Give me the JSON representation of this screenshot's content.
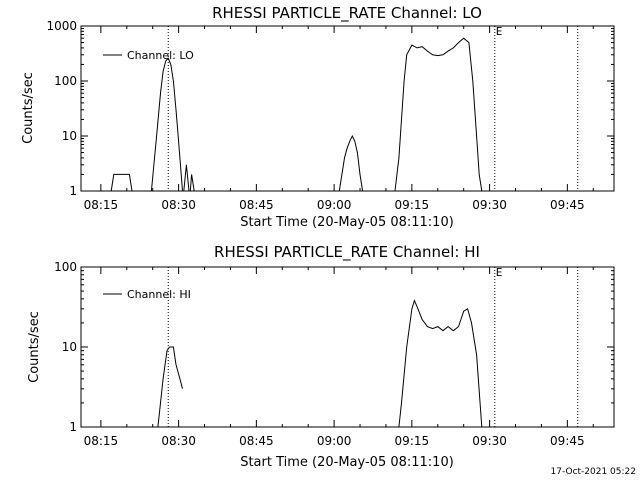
{
  "footer_timestamp": "17-Oct-2021 05:22",
  "chart_data": [
    {
      "type": "line",
      "title": "RHESSI PARTICLE_RATE Channel: LO",
      "xlabel": "Start Time (20-May-05 08:11:10)",
      "ylabel": "Counts/sec",
      "y_scale": "log",
      "ylim": [
        1,
        1000
      ],
      "y_ticks": [
        "1",
        "10",
        "100",
        "1000"
      ],
      "xlim": [
        "08:11:10",
        "09:54:00"
      ],
      "x_ticks": [
        "08:15",
        "08:30",
        "08:45",
        "09:00",
        "09:15",
        "09:30",
        "09:45"
      ],
      "legend": {
        "position": "top-left"
      },
      "event_markers": [
        {
          "time": "08:28:00",
          "label": ""
        },
        {
          "time": "09:31:00",
          "label": "E"
        },
        {
          "time": "09:47:00",
          "label": ""
        }
      ],
      "series": [
        {
          "name": "Channel: LO",
          "segments": [
            [
              [
                "08:17:00",
                1
              ],
              [
                "08:17:30",
                2
              ],
              [
                "08:20:30",
                2
              ],
              [
                "08:21:00",
                1
              ]
            ],
            [
              [
                "08:24:45",
                1
              ],
              [
                "08:25:45",
                10
              ],
              [
                "08:26:30",
                60
              ],
              [
                "08:27:00",
                150
              ],
              [
                "08:27:30",
                230
              ],
              [
                "08:28:00",
                260
              ],
              [
                "08:28:30",
                200
              ],
              [
                "08:29:00",
                100
              ],
              [
                "08:29:30",
                30
              ],
              [
                "08:30:00",
                8
              ],
              [
                "08:30:30",
                2
              ],
              [
                "08:30:45",
                1
              ]
            ],
            [
              [
                "08:31:00",
                1
              ],
              [
                "08:31:30",
                3
              ],
              [
                "08:32:00",
                1
              ]
            ],
            [
              [
                "08:32:15",
                1
              ],
              [
                "08:32:30",
                2
              ],
              [
                "08:33:00",
                1
              ]
            ],
            [
              [
                "09:01:00",
                1
              ],
              [
                "09:01:30",
                2
              ],
              [
                "09:02:00",
                4
              ],
              [
                "09:02:30",
                6
              ],
              [
                "09:03:00",
                8
              ],
              [
                "09:03:30",
                10
              ],
              [
                "09:04:00",
                8
              ],
              [
                "09:04:30",
                5
              ],
              [
                "09:05:00",
                2
              ],
              [
                "09:05:30",
                1
              ]
            ],
            [
              [
                "09:11:45",
                1
              ],
              [
                "09:12:30",
                4
              ],
              [
                "09:13:00",
                20
              ],
              [
                "09:13:30",
                100
              ],
              [
                "09:14:00",
                300
              ],
              [
                "09:15:00",
                450
              ],
              [
                "09:16:00",
                400
              ],
              [
                "09:17:00",
                420
              ],
              [
                "09:18:00",
                350
              ],
              [
                "09:19:00",
                300
              ],
              [
                "09:20:00",
                290
              ],
              [
                "09:21:00",
                300
              ],
              [
                "09:22:00",
                350
              ],
              [
                "09:23:00",
                400
              ],
              [
                "09:24:00",
                500
              ],
              [
                "09:25:00",
                600
              ],
              [
                "09:26:00",
                500
              ],
              [
                "09:26:45",
                100
              ],
              [
                "09:27:30",
                10
              ],
              [
                "09:28:00",
                2
              ],
              [
                "09:28:30",
                1
              ]
            ]
          ]
        }
      ]
    },
    {
      "type": "line",
      "title": "RHESSI PARTICLE_RATE Channel: HI",
      "xlabel": "Start Time (20-May-05 08:11:10)",
      "ylabel": "Counts/sec",
      "y_scale": "log",
      "ylim": [
        1,
        100
      ],
      "y_ticks": [
        "1",
        "10",
        "100"
      ],
      "xlim": [
        "08:11:10",
        "09:54:00"
      ],
      "x_ticks": [
        "08:15",
        "08:30",
        "08:45",
        "09:00",
        "09:15",
        "09:30",
        "09:45"
      ],
      "legend": {
        "position": "top-left"
      },
      "event_markers": [
        {
          "time": "08:28:00",
          "label": ""
        },
        {
          "time": "09:31:00",
          "label": "E"
        },
        {
          "time": "09:47:00",
          "label": ""
        }
      ],
      "series": [
        {
          "name": "Channel: HI",
          "segments": [
            [
              [
                "08:26:00",
                1
              ],
              [
                "08:27:00",
                4
              ],
              [
                "08:27:45",
                9
              ],
              [
                "08:28:15",
                10
              ],
              [
                "08:29:00",
                10
              ],
              [
                "08:29:30",
                6
              ],
              [
                "08:30:15",
                4
              ],
              [
                "08:30:45",
                3
              ]
            ],
            [
              [
                "09:12:30",
                1
              ],
              [
                "09:13:00",
                2
              ],
              [
                "09:14:00",
                10
              ],
              [
                "09:15:00",
                30
              ],
              [
                "09:15:30",
                38
              ],
              [
                "09:16:00",
                32
              ],
              [
                "09:17:00",
                22
              ],
              [
                "09:18:00",
                18
              ],
              [
                "09:19:00",
                17
              ],
              [
                "09:20:00",
                18
              ],
              [
                "09:21:00",
                16
              ],
              [
                "09:22:00",
                18
              ],
              [
                "09:23:00",
                16
              ],
              [
                "09:24:00",
                18
              ],
              [
                "09:25:00",
                28
              ],
              [
                "09:25:45",
                30
              ],
              [
                "09:26:30",
                20
              ],
              [
                "09:27:30",
                8
              ],
              [
                "09:28:30",
                1
              ]
            ]
          ]
        }
      ]
    }
  ]
}
